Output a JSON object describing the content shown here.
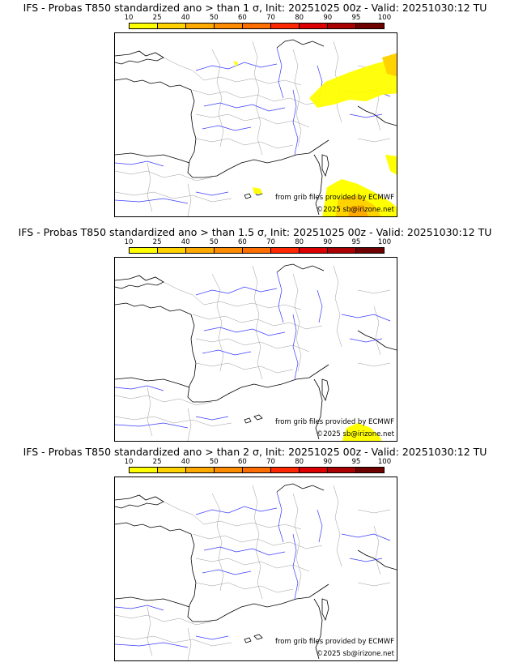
{
  "panels": [
    {
      "title": "IFS - Probas T850  standardized ano > than 1 σ, Init: 20251025 00z - Valid: 20251030:12 TU"
    },
    {
      "title": "IFS - Probas T850  standardized ano > than 1.5 σ, Init: 20251025 00z - Valid: 20251030:12 TU"
    },
    {
      "title": "IFS - Probas T850  standardized ano > than 2 σ, Init: 20251025 00z - Valid: 20251030:12 TU"
    }
  ],
  "colorbar": {
    "ticks": [
      "10",
      "25",
      "40",
      "50",
      "60",
      "70",
      "80",
      "90",
      "95",
      "100"
    ],
    "colors": [
      "#ffff00",
      "#ffd200",
      "#ffaa00",
      "#ff8c00",
      "#ff6e00",
      "#ff2800",
      "#dc0000",
      "#aa0000",
      "#6e0000"
    ]
  },
  "credits": {
    "source": "from grib files provided by ECMWF",
    "copyright": "©2025 sb@irizone.net"
  }
}
